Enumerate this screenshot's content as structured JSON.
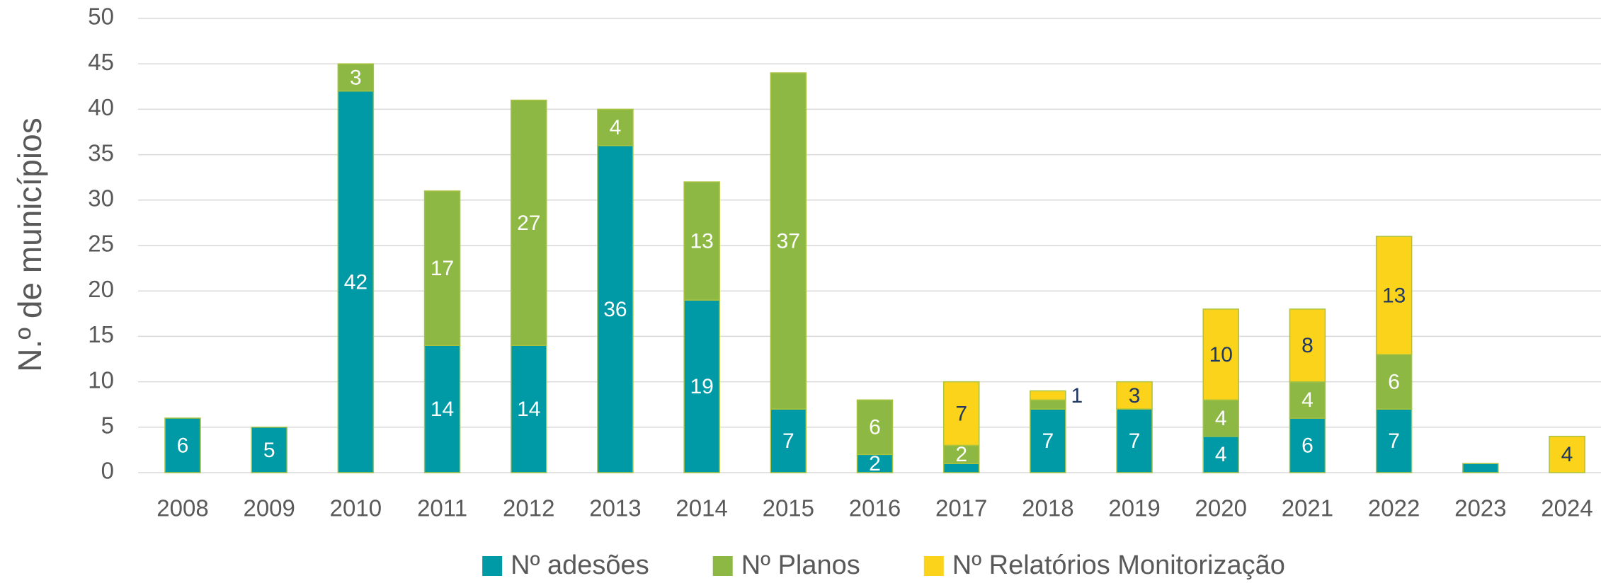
{
  "chart_data": {
    "type": "stacked_bar",
    "y_axis_label": "N.º de municípios",
    "categories": [
      "2008",
      "2009",
      "2010",
      "2011",
      "2012",
      "2013",
      "2014",
      "2015",
      "2016",
      "2017",
      "2018",
      "2019",
      "2020",
      "2021",
      "2022",
      "2023",
      "2024"
    ],
    "series": [
      {
        "name": "Nº adesões",
        "color": "#009aa6",
        "label_color": "#ffffff",
        "values": [
          6,
          5,
          42,
          14,
          14,
          36,
          19,
          7,
          2,
          1,
          7,
          7,
          4,
          6,
          7,
          1,
          null
        ],
        "value_labels": [
          "6",
          "5",
          "42",
          "14",
          "14",
          "36",
          "19",
          "7",
          "2",
          null,
          "7",
          "7",
          "4",
          "6",
          "7",
          null,
          null
        ]
      },
      {
        "name": "Nº Planos",
        "color": "#8db844",
        "label_color": "#ffffff",
        "values": [
          null,
          null,
          3,
          17,
          27,
          4,
          13,
          37,
          6,
          2,
          1,
          null,
          4,
          4,
          6,
          null,
          null
        ],
        "value_labels": [
          null,
          null,
          "3",
          "17",
          "27",
          "4",
          "13",
          "37",
          "6",
          "2",
          null,
          null,
          "4",
          "4",
          "6",
          null,
          null
        ]
      },
      {
        "name": "Nº Relatórios Monitorização",
        "color": "#fcd31b",
        "label_color": "#1f3864",
        "values": [
          null,
          null,
          null,
          null,
          null,
          null,
          null,
          null,
          null,
          7,
          1,
          3,
          10,
          8,
          13,
          null,
          4
        ],
        "value_labels": [
          null,
          null,
          null,
          null,
          null,
          null,
          null,
          null,
          null,
          "7",
          "1",
          "3",
          "10",
          "8",
          "13",
          null,
          "4"
        ]
      }
    ],
    "ylim": [
      0,
      50
    ],
    "yticks": [
      0,
      5,
      10,
      15,
      20,
      25,
      30,
      35,
      40,
      45,
      50
    ],
    "grid": true,
    "legend": "bottom"
  }
}
